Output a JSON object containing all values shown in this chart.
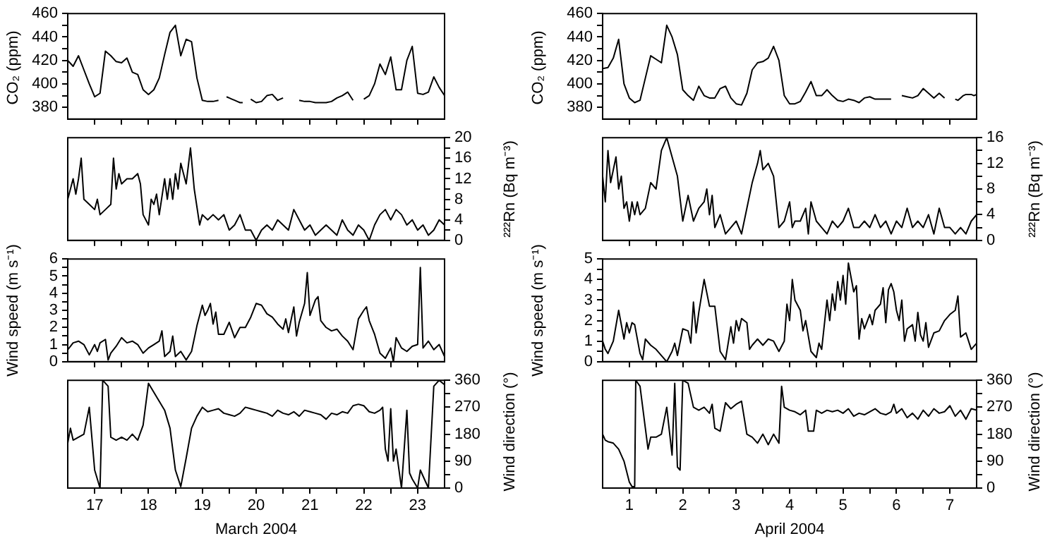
{
  "chart_data": [
    {
      "type": "line",
      "ylabel": "CO₂ (ppm)",
      "xlim": [
        16.5,
        23.5
      ],
      "xticks": [
        17,
        {
          "value": 17.5,
          "label": null
        },
        18,
        {
          "value": 18.5,
          "label": null
        },
        19,
        {
          "value": 19.5,
          "label": null
        },
        20,
        {
          "value": 20.5,
          "label": null
        },
        21,
        {
          "value": 21.5,
          "label": null
        },
        22,
        {
          "value": 22.5,
          "label": null
        },
        23
      ],
      "ylim": [
        370,
        460
      ],
      "yticks": [
        380,
        {
          "value": 390,
          "label": null
        },
        400,
        {
          "value": 410,
          "label": null
        },
        420,
        {
          "value": 430,
          "label": null
        },
        440,
        {
          "value": 450,
          "label": null
        },
        460
      ],
      "tick_labels": "y",
      "series": [
        {
          "color": "#000000",
          "x": [
            16.5,
            16.6,
            16.7,
            16.8,
            16.9,
            17.0,
            17.1,
            17.2,
            17.3,
            17.4,
            17.5,
            17.6,
            17.7,
            17.8,
            17.9,
            18.0,
            18.1,
            18.2,
            18.3,
            18.4,
            18.5,
            18.6,
            18.7,
            18.8,
            18.9,
            19.0,
            19.1,
            19.2,
            19.3,
            19.38,
            19.45,
            19.5,
            19.55,
            19.6,
            19.65,
            19.7,
            19.75,
            19.82,
            19.9,
            20.0,
            20.1,
            20.2,
            20.3,
            20.4,
            20.5,
            20.6,
            20.7,
            20.8,
            20.9,
            21.0,
            21.1,
            21.2,
            21.3,
            21.4,
            21.5,
            21.6,
            21.7,
            21.8,
            21.9,
            22.0,
            22.1,
            22.2,
            22.3,
            22.4,
            22.5,
            22.6,
            22.7,
            22.8,
            22.9,
            23.0,
            23.1,
            23.2,
            23.3,
            23.4,
            23.5
          ],
          "values": [
            420,
            415,
            424,
            412,
            400,
            389,
            392,
            428,
            424,
            419,
            418,
            422,
            410,
            408,
            395,
            391,
            395,
            405,
            425,
            444,
            450,
            424,
            438,
            436,
            405,
            386,
            385,
            385,
            386,
            null,
            389,
            388,
            387,
            386,
            385,
            384,
            384,
            null,
            387,
            384,
            385,
            390,
            391,
            386,
            388,
            null,
            null,
            386,
            385,
            385,
            384,
            384,
            384,
            385,
            388,
            390,
            393,
            386,
            null,
            387,
            390,
            400,
            417,
            408,
            423,
            395,
            395,
            420,
            432,
            392,
            391,
            393,
            406,
            397,
            390
          ]
        }
      ]
    },
    {
      "type": "line",
      "y2label": "²²²Rn (Bq m⁻³)",
      "xlim": [
        16.5,
        23.5
      ],
      "xticks": [
        17,
        {
          "value": 17.5,
          "label": null
        },
        18,
        {
          "value": 18.5,
          "label": null
        },
        19,
        {
          "value": 19.5,
          "label": null
        },
        20,
        {
          "value": 20.5,
          "label": null
        },
        21,
        {
          "value": 21.5,
          "label": null
        },
        22,
        {
          "value": 22.5,
          "label": null
        },
        23
      ],
      "y2lim": [
        0,
        20
      ],
      "y2ticks": [
        0,
        {
          "value": 2,
          "label": null
        },
        4,
        {
          "value": 6,
          "label": null
        },
        8,
        {
          "value": 10,
          "label": null
        },
        12,
        {
          "value": 14,
          "label": null
        },
        16,
        {
          "value": 18,
          "label": null
        },
        20
      ],
      "tick_labels": "y",
      "series": [
        {
          "axis": "y2",
          "color": "#000000",
          "x": [
            16.5,
            16.55,
            16.6,
            16.65,
            16.7,
            16.75,
            16.8,
            16.9,
            17.0,
            17.05,
            17.1,
            17.2,
            17.3,
            17.35,
            17.4,
            17.45,
            17.5,
            17.6,
            17.7,
            17.8,
            17.85,
            17.9,
            18.0,
            18.05,
            18.1,
            18.15,
            18.2,
            18.3,
            18.35,
            18.4,
            18.45,
            18.5,
            18.55,
            18.6,
            18.7,
            18.78,
            18.85,
            18.95,
            19.0,
            19.1,
            19.2,
            19.3,
            19.4,
            19.5,
            19.6,
            19.7,
            19.8,
            19.9,
            20.0,
            20.1,
            20.2,
            20.3,
            20.4,
            20.5,
            20.6,
            20.7,
            20.8,
            20.9,
            21.0,
            21.1,
            21.2,
            21.3,
            21.4,
            21.5,
            21.6,
            21.7,
            21.8,
            21.9,
            22.0,
            22.1,
            22.2,
            22.3,
            22.4,
            22.5,
            22.6,
            22.7,
            22.8,
            22.9,
            23.0,
            23.1,
            23.2,
            23.3,
            23.4,
            23.5
          ],
          "values": [
            8,
            10,
            12,
            9,
            12,
            16,
            8,
            7,
            6,
            8,
            5,
            6,
            7,
            16,
            10,
            13,
            11,
            12,
            12,
            13,
            11,
            5,
            3,
            8,
            7,
            9,
            5,
            12,
            8,
            12,
            8,
            13,
            10,
            15,
            11,
            18,
            10,
            3,
            5,
            4,
            5,
            4,
            5,
            2,
            3,
            5,
            2,
            2,
            0,
            2,
            3,
            2,
            4,
            3,
            2,
            6,
            4,
            2,
            3,
            1,
            2,
            3,
            2,
            1,
            4,
            2,
            1,
            3,
            2,
            0,
            3,
            5,
            6,
            4,
            6,
            5,
            3,
            4,
            2,
            3,
            1,
            2,
            4,
            3
          ]
        }
      ]
    },
    {
      "type": "line",
      "ylabel": "Wind speed (m s⁻¹)",
      "xlim": [
        16.5,
        23.5
      ],
      "xticks": [
        17,
        {
          "value": 17.5,
          "label": null
        },
        18,
        {
          "value": 18.5,
          "label": null
        },
        19,
        {
          "value": 19.5,
          "label": null
        },
        20,
        {
          "value": 20.5,
          "label": null
        },
        21,
        {
          "value": 21.5,
          "label": null
        },
        22,
        {
          "value": 22.5,
          "label": null
        },
        23
      ],
      "ylim": [
        0,
        6
      ],
      "yticks": [
        0,
        {
          "value": 0.5,
          "label": null
        },
        1,
        {
          "value": 1.5,
          "label": null
        },
        2,
        {
          "value": 2.5,
          "label": null
        },
        3,
        {
          "value": 3.5,
          "label": null
        },
        4,
        {
          "value": 4.5,
          "label": null
        },
        5,
        {
          "value": 5.5,
          "label": null
        },
        6
      ],
      "tick_labels": "y",
      "series": [
        {
          "color": "#000000",
          "x": [
            16.5,
            16.6,
            16.7,
            16.8,
            16.9,
            17.0,
            17.05,
            17.1,
            17.2,
            17.25,
            17.3,
            17.4,
            17.5,
            17.6,
            17.7,
            17.8,
            17.9,
            18.0,
            18.1,
            18.2,
            18.25,
            18.3,
            18.4,
            18.45,
            18.5,
            18.6,
            18.7,
            18.8,
            18.9,
            19.0,
            19.05,
            19.1,
            19.15,
            19.2,
            19.25,
            19.3,
            19.4,
            19.5,
            19.6,
            19.7,
            19.8,
            19.9,
            20.0,
            20.1,
            20.2,
            20.3,
            20.4,
            20.5,
            20.55,
            20.6,
            20.7,
            20.75,
            20.8,
            20.9,
            20.95,
            21.0,
            21.1,
            21.15,
            21.2,
            21.3,
            21.4,
            21.5,
            21.6,
            21.7,
            21.8,
            21.9,
            22.0,
            22.05,
            22.1,
            22.2,
            22.3,
            22.4,
            22.5,
            22.55,
            22.6,
            22.7,
            22.8,
            22.9,
            23.0,
            23.05,
            23.1,
            23.2,
            23.3,
            23.4,
            23.5
          ],
          "values": [
            0.7,
            1.1,
            1.2,
            1.0,
            0.4,
            1.0,
            0.6,
            1.1,
            1.3,
            0.1,
            0.5,
            0.9,
            1.4,
            1.1,
            1.2,
            1.0,
            0.5,
            0.8,
            1.0,
            1.2,
            1.8,
            0.3,
            0.6,
            1.5,
            0.3,
            0.6,
            0.1,
            0.6,
            2.1,
            3.3,
            2.7,
            3.0,
            3.4,
            2.2,
            2.9,
            1.6,
            1.6,
            2.3,
            1.4,
            2.0,
            2.0,
            2.6,
            3.4,
            3.3,
            2.8,
            2.6,
            2.2,
            1.9,
            2.5,
            1.7,
            3.2,
            1.5,
            2.3,
            3.4,
            5.2,
            2.7,
            3.6,
            3.8,
            2.4,
            2.0,
            1.8,
            1.9,
            1.5,
            1.2,
            0.7,
            2.5,
            3.0,
            3.2,
            2.4,
            1.6,
            0.5,
            0.2,
            0.8,
            0.0,
            1.4,
            0.8,
            0.6,
            0.9,
            1.0,
            5.5,
            0.8,
            1.2,
            0.7,
            1.0,
            0.3
          ]
        }
      ]
    },
    {
      "type": "line",
      "xlabel": "March 2004",
      "y2label": "Wind direction (°)",
      "xlim": [
        16.5,
        23.5
      ],
      "xticks": [
        17,
        {
          "value": 17.5,
          "label": null
        },
        18,
        {
          "value": 18.5,
          "label": null
        },
        19,
        {
          "value": 19.5,
          "label": null
        },
        20,
        {
          "value": 20.5,
          "label": null
        },
        21,
        {
          "value": 21.5,
          "label": null
        },
        22,
        {
          "value": 22.5,
          "label": null
        },
        23
      ],
      "y2lim": [
        0,
        360
      ],
      "y2ticks": [
        0,
        {
          "value": 45,
          "label": null
        },
        90,
        {
          "value": 135,
          "label": null
        },
        180,
        {
          "value": 225,
          "label": null
        },
        270,
        {
          "value": 315,
          "label": null
        },
        360
      ],
      "series": [
        {
          "axis": "y2",
          "color": "#000000",
          "x": [
            16.5,
            16.55,
            16.6,
            16.7,
            16.8,
            16.9,
            17.0,
            17.1,
            17.15,
            17.25,
            17.3,
            17.4,
            17.5,
            17.6,
            17.7,
            17.8,
            17.9,
            18.0,
            18.1,
            18.2,
            18.3,
            18.4,
            18.5,
            18.6,
            18.7,
            18.8,
            18.9,
            19.0,
            19.1,
            19.2,
            19.3,
            19.4,
            19.5,
            19.6,
            19.7,
            19.8,
            19.9,
            20.0,
            20.1,
            20.2,
            20.3,
            20.4,
            20.5,
            20.6,
            20.7,
            20.8,
            20.9,
            21.0,
            21.1,
            21.2,
            21.3,
            21.4,
            21.5,
            21.6,
            21.7,
            21.8,
            21.9,
            22.0,
            22.1,
            22.2,
            22.3,
            22.35,
            22.4,
            22.45,
            22.5,
            22.55,
            22.6,
            22.7,
            22.8,
            22.85,
            22.9,
            23.0,
            23.05,
            23.15,
            23.2,
            23.3,
            23.4,
            23.5
          ],
          "values": [
            150,
            200,
            160,
            170,
            180,
            270,
            60,
            0,
            360,
            340,
            170,
            160,
            170,
            160,
            180,
            160,
            210,
            350,
            320,
            290,
            260,
            200,
            60,
            5,
            100,
            200,
            240,
            270,
            255,
            260,
            265,
            250,
            245,
            240,
            250,
            270,
            265,
            260,
            255,
            250,
            240,
            260,
            250,
            245,
            255,
            240,
            260,
            255,
            250,
            245,
            230,
            250,
            245,
            255,
            250,
            275,
            280,
            275,
            255,
            250,
            260,
            270,
            130,
            90,
            265,
            90,
            130,
            0,
            260,
            50,
            30,
            0,
            60,
            20,
            0,
            340,
            360,
            345
          ]
        }
      ]
    },
    {
      "type": "line",
      "ylabel": "CO₂ (ppm)",
      "xlim": [
        0.5,
        7.5
      ],
      "xticks": [
        1,
        {
          "value": 1.5,
          "label": null
        },
        2,
        {
          "value": 2.5,
          "label": null
        },
        3,
        {
          "value": 3.5,
          "label": null
        },
        4,
        {
          "value": 4.5,
          "label": null
        },
        5,
        {
          "value": 5.5,
          "label": null
        },
        6,
        {
          "value": 6.5,
          "label": null
        },
        7
      ],
      "ylim": [
        370,
        460
      ],
      "yticks": [
        380,
        {
          "value": 390,
          "label": null
        },
        400,
        {
          "value": 410,
          "label": null
        },
        420,
        {
          "value": 430,
          "label": null
        },
        440,
        {
          "value": 450,
          "label": null
        },
        460
      ],
      "tick_labels": "y",
      "series": [
        {
          "color": "#000000",
          "x": [
            0.5,
            0.6,
            0.7,
            0.8,
            0.9,
            1.0,
            1.1,
            1.2,
            1.3,
            1.4,
            1.5,
            1.6,
            1.7,
            1.8,
            1.9,
            2.0,
            2.1,
            2.2,
            2.3,
            2.4,
            2.5,
            2.6,
            2.7,
            2.8,
            2.9,
            3.0,
            3.1,
            3.2,
            3.3,
            3.4,
            3.5,
            3.6,
            3.7,
            3.8,
            3.9,
            4.0,
            4.1,
            4.2,
            4.3,
            4.4,
            4.5,
            4.6,
            4.7,
            4.8,
            4.9,
            5.0,
            5.1,
            5.2,
            5.3,
            5.4,
            5.5,
            5.6,
            5.7,
            5.8,
            5.9,
            6.0,
            6.1,
            6.2,
            6.3,
            6.4,
            6.5,
            6.6,
            6.7,
            6.8,
            6.9,
            7.0,
            7.1,
            7.15,
            7.2,
            7.25,
            7.3,
            7.35,
            7.4,
            7.45,
            7.5
          ],
          "values": [
            413,
            414,
            422,
            438,
            400,
            388,
            384,
            386,
            405,
            424,
            421,
            418,
            450,
            440,
            425,
            395,
            390,
            386,
            398,
            390,
            388,
            388,
            396,
            398,
            388,
            383,
            382,
            392,
            412,
            418,
            419,
            422,
            432,
            420,
            390,
            383,
            383,
            385,
            393,
            402,
            390,
            390,
            395,
            390,
            386,
            385,
            387,
            386,
            384,
            388,
            389,
            387,
            387,
            387,
            387,
            null,
            390,
            389,
            388,
            390,
            396,
            392,
            388,
            392,
            388,
            null,
            387,
            386,
            388,
            390,
            391,
            391,
            391,
            390,
            391
          ]
        }
      ]
    },
    {
      "type": "line",
      "y2label": "²²²Rn (Bq m⁻³)",
      "xlim": [
        0.5,
        7.5
      ],
      "xticks": [
        1,
        {
          "value": 1.5,
          "label": null
        },
        2,
        {
          "value": 2.5,
          "label": null
        },
        3,
        {
          "value": 3.5,
          "label": null
        },
        4,
        {
          "value": 4.5,
          "label": null
        },
        5,
        {
          "value": 5.5,
          "label": null
        },
        6,
        {
          "value": 6.5,
          "label": null
        },
        7
      ],
      "y2lim": [
        0,
        16
      ],
      "y2ticks": [
        0,
        {
          "value": 2,
          "label": null
        },
        4,
        {
          "value": 6,
          "label": null
        },
        8,
        {
          "value": 10,
          "label": null
        },
        12,
        {
          "value": 14,
          "label": null
        },
        16
      ],
      "tick_labels": "y",
      "series": [
        {
          "axis": "y2",
          "color": "#000000",
          "x": [
            0.5,
            0.55,
            0.6,
            0.65,
            0.7,
            0.75,
            0.8,
            0.85,
            0.9,
            0.95,
            1.0,
            1.05,
            1.1,
            1.15,
            1.2,
            1.3,
            1.4,
            1.5,
            1.55,
            1.6,
            1.7,
            1.8,
            1.9,
            2.0,
            2.1,
            2.2,
            2.3,
            2.4,
            2.45,
            2.5,
            2.55,
            2.6,
            2.7,
            2.8,
            2.9,
            3.0,
            3.1,
            3.2,
            3.3,
            3.4,
            3.45,
            3.5,
            3.6,
            3.7,
            3.8,
            3.9,
            4.0,
            4.05,
            4.1,
            4.2,
            4.3,
            4.35,
            4.4,
            4.5,
            4.6,
            4.7,
            4.8,
            4.9,
            5.0,
            5.1,
            5.2,
            5.3,
            5.4,
            5.5,
            5.6,
            5.7,
            5.8,
            5.9,
            6.0,
            6.1,
            6.2,
            6.3,
            6.4,
            6.5,
            6.6,
            6.7,
            6.8,
            6.9,
            7.0,
            7.1,
            7.2,
            7.3,
            7.4,
            7.5
          ],
          "values": [
            10,
            6,
            14,
            9,
            11,
            13,
            8,
            10,
            5,
            6,
            3,
            6,
            4,
            6,
            4,
            5,
            9,
            8,
            11,
            14,
            16,
            13,
            10,
            3,
            7,
            3,
            5,
            6,
            8,
            4,
            7,
            2,
            4,
            1,
            2,
            3,
            1,
            5,
            9,
            12,
            14,
            11,
            12,
            10,
            2,
            3,
            6,
            2,
            3,
            3,
            5,
            1,
            6,
            3,
            2,
            1,
            3,
            2,
            3,
            5,
            2,
            2,
            3,
            2,
            4,
            2,
            3,
            1,
            3,
            2,
            5,
            2,
            3,
            2,
            4,
            1,
            5,
            2,
            2,
            1,
            2,
            1,
            3,
            4
          ]
        }
      ]
    },
    {
      "type": "line",
      "ylabel": "Wind speed (m s⁻¹)",
      "xlim": [
        0.5,
        7.5
      ],
      "xticks": [
        1,
        {
          "value": 1.5,
          "label": null
        },
        2,
        {
          "value": 2.5,
          "label": null
        },
        3,
        {
          "value": 3.5,
          "label": null
        },
        4,
        {
          "value": 4.5,
          "label": null
        },
        5,
        {
          "value": 5.5,
          "label": null
        },
        6,
        {
          "value": 6.5,
          "label": null
        },
        7
      ],
      "ylim": [
        0,
        5
      ],
      "yticks": [
        0,
        {
          "value": 0.5,
          "label": null
        },
        1,
        {
          "value": 1.5,
          "label": null
        },
        2,
        {
          "value": 2.5,
          "label": null
        },
        3,
        {
          "value": 3.5,
          "label": null
        },
        4,
        {
          "value": 4.5,
          "label": null
        },
        5
      ],
      "tick_labels": "y",
      "series": [
        {
          "color": "#000000",
          "x": [
            0.5,
            0.55,
            0.6,
            0.7,
            0.8,
            0.9,
            0.95,
            1.0,
            1.05,
            1.1,
            1.2,
            1.25,
            1.3,
            1.4,
            1.5,
            1.6,
            1.7,
            1.8,
            1.85,
            1.9,
            2.0,
            2.1,
            2.15,
            2.2,
            2.25,
            2.3,
            2.4,
            2.5,
            2.6,
            2.7,
            2.8,
            2.9,
            2.95,
            3.0,
            3.05,
            3.1,
            3.2,
            3.25,
            3.3,
            3.4,
            3.5,
            3.6,
            3.7,
            3.8,
            3.9,
            3.95,
            4.0,
            4.05,
            4.1,
            4.2,
            4.25,
            4.3,
            4.4,
            4.5,
            4.55,
            4.6,
            4.7,
            4.75,
            4.8,
            4.85,
            4.9,
            4.95,
            5.0,
            5.05,
            5.1,
            5.2,
            5.25,
            5.3,
            5.35,
            5.4,
            5.5,
            5.55,
            5.6,
            5.7,
            5.75,
            5.8,
            5.85,
            5.9,
            5.95,
            6.0,
            6.05,
            6.1,
            6.15,
            6.2,
            6.3,
            6.35,
            6.4,
            6.45,
            6.5,
            6.55,
            6.6,
            6.7,
            6.8,
            6.9,
            7.0,
            7.1,
            7.15,
            7.2,
            7.3,
            7.4,
            7.5
          ],
          "values": [
            1.0,
            0.6,
            0.4,
            1.0,
            2.5,
            1.1,
            1.9,
            1.4,
            1.9,
            1.8,
            0.4,
            0.1,
            1.1,
            0.8,
            0.6,
            0.3,
            0.0,
            0.5,
            0.9,
            0.3,
            1.6,
            1.5,
            0.9,
            2.9,
            1.4,
            2.4,
            4.0,
            2.7,
            2.7,
            0.5,
            0.1,
            1.7,
            0.9,
            2.0,
            1.5,
            2.1,
            1.9,
            0.6,
            0.8,
            1.1,
            0.8,
            1.1,
            1.0,
            0.5,
            1.0,
            2.8,
            2.0,
            4.0,
            3.0,
            2.5,
            1.5,
            2.0,
            0.5,
            0.2,
            0.9,
            0.6,
            3.0,
            2.0,
            3.3,
            2.5,
            3.9,
            3.0,
            4.2,
            2.8,
            4.8,
            3.4,
            3.7,
            1.1,
            2.1,
            1.6,
            2.3,
            1.8,
            2.5,
            2.8,
            3.6,
            1.9,
            3.5,
            3.8,
            3.4,
            2.5,
            2.0,
            3.0,
            1.0,
            1.6,
            1.8,
            1.0,
            2.4,
            1.3,
            1.0,
            1.9,
            0.7,
            1.4,
            1.5,
            2.0,
            2.3,
            2.5,
            3.2,
            1.2,
            1.4,
            0.6,
            0.9
          ]
        }
      ]
    },
    {
      "type": "line",
      "xlabel": "April 2004",
      "y2label": "Wind direction (°)",
      "xlim": [
        0.5,
        7.5
      ],
      "xticks": [
        1,
        {
          "value": 1.5,
          "label": null
        },
        2,
        {
          "value": 2.5,
          "label": null
        },
        3,
        {
          "value": 3.5,
          "label": null
        },
        4,
        {
          "value": 4.5,
          "label": null
        },
        5,
        {
          "value": 5.5,
          "label": null
        },
        6,
        {
          "value": 6.5,
          "label": null
        },
        7
      ],
      "y2lim": [
        0,
        360
      ],
      "y2ticks": [
        0,
        {
          "value": 45,
          "label": null
        },
        90,
        {
          "value": 135,
          "label": null
        },
        180,
        {
          "value": 225,
          "label": null
        },
        270,
        {
          "value": 315,
          "label": null
        },
        360
      ],
      "series": [
        {
          "axis": "y2",
          "color": "#000000",
          "x": [
            0.5,
            0.55,
            0.6,
            0.7,
            0.8,
            0.9,
            1.0,
            1.05,
            1.1,
            1.12,
            1.2,
            1.3,
            1.35,
            1.4,
            1.5,
            1.6,
            1.7,
            1.8,
            1.85,
            1.9,
            1.95,
            2.0,
            2.1,
            2.2,
            2.3,
            2.4,
            2.5,
            2.55,
            2.6,
            2.7,
            2.8,
            2.9,
            3.0,
            3.1,
            3.2,
            3.3,
            3.4,
            3.5,
            3.6,
            3.7,
            3.8,
            3.85,
            3.9,
            4.0,
            4.1,
            4.2,
            4.3,
            4.35,
            4.45,
            4.5,
            4.6,
            4.7,
            4.8,
            4.9,
            5.0,
            5.1,
            5.2,
            5.3,
            5.4,
            5.5,
            5.6,
            5.7,
            5.8,
            5.9,
            5.95,
            6.0,
            6.1,
            6.2,
            6.3,
            6.4,
            6.5,
            6.6,
            6.7,
            6.8,
            6.9,
            7.0,
            7.1,
            7.2,
            7.3,
            7.4,
            7.5
          ],
          "values": [
            180,
            160,
            155,
            150,
            130,
            90,
            20,
            5,
            5,
            360,
            340,
            200,
            130,
            170,
            170,
            180,
            270,
            110,
            350,
            70,
            60,
            360,
            350,
            270,
            260,
            270,
            250,
            280,
            200,
            190,
            285,
            265,
            280,
            290,
            180,
            170,
            150,
            180,
            145,
            180,
            150,
            340,
            270,
            260,
            255,
            245,
            260,
            190,
            190,
            260,
            250,
            260,
            255,
            260,
            250,
            265,
            240,
            250,
            245,
            255,
            265,
            250,
            245,
            255,
            280,
            250,
            265,
            235,
            250,
            230,
            260,
            240,
            265,
            250,
            255,
            275,
            240,
            260,
            230,
            265,
            260
          ]
        }
      ]
    }
  ]
}
